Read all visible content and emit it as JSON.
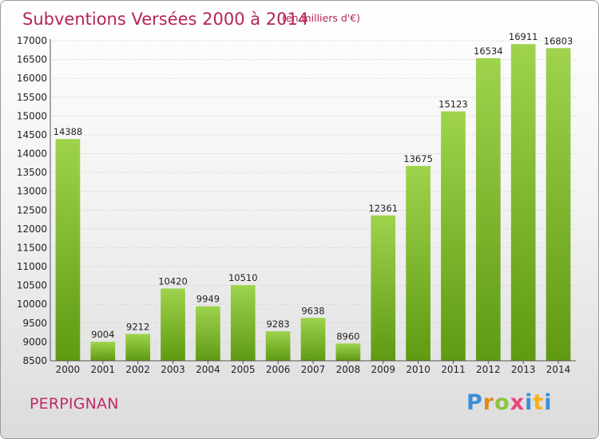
{
  "chart_data": {
    "type": "bar",
    "title": "Subventions Versées 2000 à 2014",
    "subtitle": "(en milliers d'€)",
    "categories": [
      "2000",
      "2001",
      "2002",
      "2003",
      "2004",
      "2005",
      "2006",
      "2007",
      "2008",
      "2009",
      "2010",
      "2011",
      "2012",
      "2013",
      "2014"
    ],
    "values": [
      14388,
      9004,
      9212,
      10420,
      9949,
      10510,
      9283,
      9638,
      8960,
      12361,
      13675,
      15123,
      16534,
      16911,
      16803
    ],
    "ylim": [
      8500,
      17000
    ],
    "yticks": [
      8500,
      9000,
      9500,
      10000,
      10500,
      11000,
      11500,
      12000,
      12500,
      13000,
      13500,
      14000,
      14500,
      15000,
      15500,
      16000,
      16500,
      17000
    ],
    "grid": true,
    "bar_color": "#7fbf2a",
    "title_color": "#b5245a"
  },
  "footer": {
    "location": "PERPIGNAN",
    "logo": "Proxiti"
  }
}
